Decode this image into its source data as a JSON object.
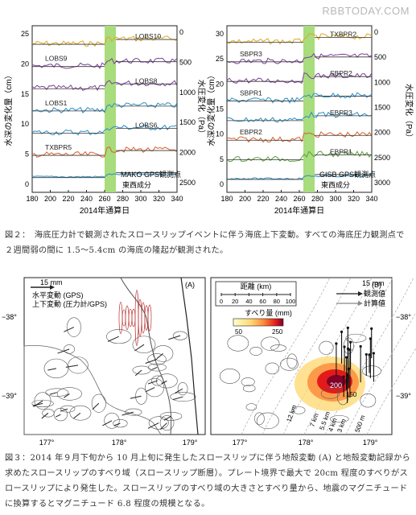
{
  "watermark": "RBBTODAY.COM",
  "fig2": {
    "caption": "図２：　海底圧力計で観測されたスロースリップイベントに伴う海底上下変動。すべての海底圧力観測点で２週間弱の間に 1.5～5.4cm の海底の隆起が観測された。",
    "left": {
      "ylabel_left": "水深の変化量（cm）",
      "ylabel_right": "水圧変化（Pa）",
      "xlabel": "2014年通算日",
      "gps_label": "MAKO GPS観測点",
      "gps_sub": "東西成分",
      "left_ticks": [
        "0",
        "5",
        "10",
        "15",
        "20",
        "25"
      ],
      "right_ticks": [
        "0",
        "500",
        "1000",
        "1500",
        "2000",
        "2500"
      ],
      "x_ticks": [
        "180",
        "200",
        "220",
        "240",
        "260",
        "280",
        "300",
        "320",
        "340"
      ],
      "stations": [
        "LOBS10",
        "LOBS9",
        "LOBS8",
        "LOBS1",
        "LOBS6",
        "TXBPR5"
      ]
    },
    "right": {
      "ylabel_left": "水深の変化量（cm）",
      "ylabel_right": "水圧変化（Pa）",
      "xlabel": "2014年通算日",
      "gps_label": "GISB GPS観測点",
      "gps_sub": "東西成分",
      "left_ticks": [
        "0",
        "5",
        "10",
        "15",
        "20",
        "25",
        "30"
      ],
      "right_ticks": [
        "0",
        "500",
        "1000",
        "1500",
        "2000",
        "2500",
        "3000"
      ],
      "x_ticks": [
        "180",
        "200",
        "220",
        "240",
        "260",
        "280",
        "300",
        "320",
        "340"
      ],
      "stations": [
        "TXBPR2",
        "SBPR3",
        "SBPR2",
        "SBPR1",
        "EBPR3",
        "EBPR2",
        "EBPR1"
      ]
    },
    "colors": {
      "highlight": "#a8dc7c",
      "c1": "#e0a81c",
      "c2": "#7d3f9a",
      "c3": "#2a8fc6",
      "c4": "#d9602a",
      "c5": "#5b9e3a",
      "c6": "#27aab5",
      "line": "#333333"
    }
  },
  "fig3": {
    "caption": "図３：2014 年９月下旬から 10 月上旬に発生したスロースリップに伴う地殻変動 (A) と地殻変動記録から求めたスロースリップのすべり域（スロースリップ断層）。プレート境界で最大で 20cm 程度のすべりがスロースリップにより発生した。スロースリップのすべり域の大きさとすべり量から、地震のマグニチュードに換算するとマグニチュード 6.8 程度の規模となる。",
    "A": {
      "panel_label": "(A)",
      "scale_label": "15 mm",
      "legend_horizontal": "水平変動 (GPS)",
      "legend_vertical": "上下変動 (圧力計/GPS)",
      "lat_ticks": [
        "−38°",
        "−39°"
      ],
      "lon_ticks": [
        "177°",
        "178°",
        "179°"
      ]
    },
    "B": {
      "panel_label": "(B)",
      "distance_label": "距離 (km)",
      "distance_ticks": [
        "0",
        "20",
        "40",
        "60",
        "80",
        "100"
      ],
      "scale_label": "15 mm",
      "observed_label": "観測値",
      "computed_label": "計算値",
      "slip_label": "すべり量 (mm)",
      "slip_ticks": [
        "50",
        "250"
      ],
      "peak_label": "200",
      "contour_label_2": "150",
      "depth_labels": [
        "12 km",
        "7 km",
        "5.5 km",
        "4 km",
        "3 km",
        "500 m"
      ],
      "lat_ticks": [
        "−38°",
        "−39°"
      ],
      "lon_ticks": [
        "177°",
        "178°",
        "179°"
      ]
    }
  }
}
